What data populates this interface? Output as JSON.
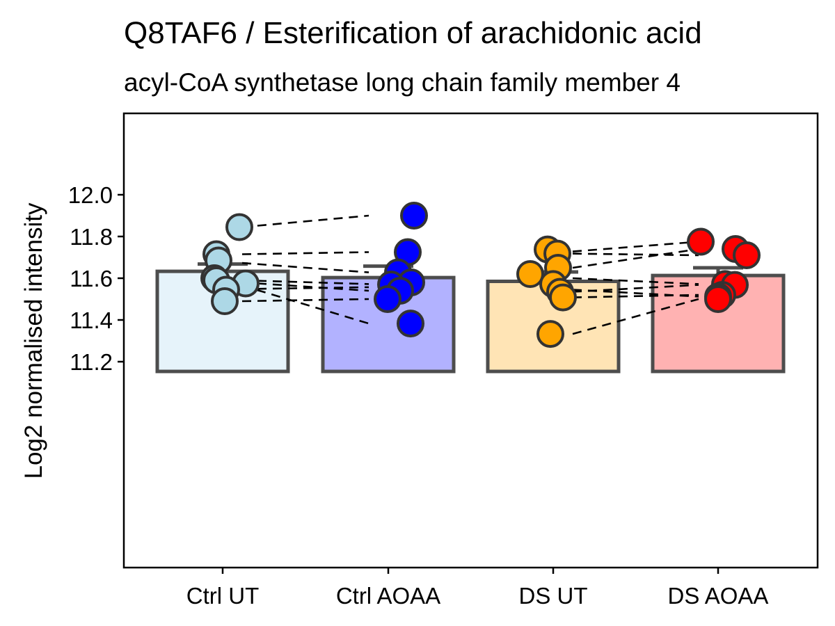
{
  "chart_data": {
    "type": "bar",
    "title": "Q8TAF6 / Esterification of arachidonic acid",
    "subtitle": "acyl-CoA synthetase long chain family member 4",
    "xlabel": "",
    "ylabel": "Log2 normalised intensity",
    "ylim": [
      11.18,
      12.18
    ],
    "yticks": [
      11.2,
      11.4,
      11.6,
      11.8,
      12.0
    ],
    "ytick_labels": [
      "11.2",
      "11.4",
      "11.6",
      "11.8",
      "12.0"
    ],
    "grid": false,
    "categories": [
      "Ctrl UT",
      "Ctrl AOAA",
      "DS UT",
      "DS AOAA"
    ],
    "values": [
      11.633,
      11.603,
      11.585,
      11.613
    ],
    "error_upper": [
      11.668,
      11.658,
      11.63,
      11.65
    ],
    "bar_fill_colors": [
      "#e6f3fa",
      "#b2b2ff",
      "#ffe4b5",
      "#ffb2b2"
    ],
    "point_colors": [
      "#add8e6",
      "#0000ff",
      "#ffa500",
      "#ff0000"
    ],
    "points": [
      [
        11.845,
        11.715,
        11.685,
        11.6,
        11.59,
        11.575,
        11.545,
        11.49
      ],
      [
        11.9,
        11.725,
        11.628,
        11.58,
        11.57,
        11.54,
        11.5,
        11.383
      ],
      [
        11.738,
        11.718,
        11.65,
        11.62,
        11.572,
        11.535,
        11.508,
        11.333
      ],
      [
        11.775,
        11.74,
        11.71,
        11.572,
        11.568,
        11.52,
        11.512,
        11.5
      ]
    ],
    "pairs": [
      {
        "from": [
          0,
          11.845
        ],
        "to": [
          1,
          11.9
        ]
      },
      {
        "from": [
          0,
          11.715
        ],
        "to": [
          1,
          11.725
        ]
      },
      {
        "from": [
          0,
          11.673
        ],
        "to": [
          1,
          11.628
        ]
      },
      {
        "from": [
          0,
          11.59
        ],
        "to": [
          1,
          11.572
        ]
      },
      {
        "from": [
          0,
          11.548
        ],
        "to": [
          1,
          11.557
        ]
      },
      {
        "from": [
          0,
          11.49
        ],
        "to": [
          1,
          11.5
        ]
      },
      {
        "from": [
          0,
          11.565
        ],
        "to": [
          1,
          11.383
        ]
      },
      {
        "from": [
          0,
          11.58
        ],
        "to": [
          1,
          11.54
        ]
      },
      {
        "from": [
          2,
          11.728
        ],
        "to": [
          3,
          11.775
        ]
      },
      {
        "from": [
          2,
          11.65
        ],
        "to": [
          3,
          11.74
        ]
      },
      {
        "from": [
          2,
          11.718
        ],
        "to": [
          3,
          11.71
        ]
      },
      {
        "from": [
          2,
          11.6
        ],
        "to": [
          3,
          11.572
        ]
      },
      {
        "from": [
          2,
          11.535
        ],
        "to": [
          3,
          11.568
        ]
      },
      {
        "from": [
          2,
          11.508
        ],
        "to": [
          3,
          11.52
        ]
      },
      {
        "from": [
          2,
          11.545
        ],
        "to": [
          3,
          11.512
        ]
      },
      {
        "from": [
          2,
          11.333
        ],
        "to": [
          3,
          11.5
        ]
      }
    ]
  }
}
